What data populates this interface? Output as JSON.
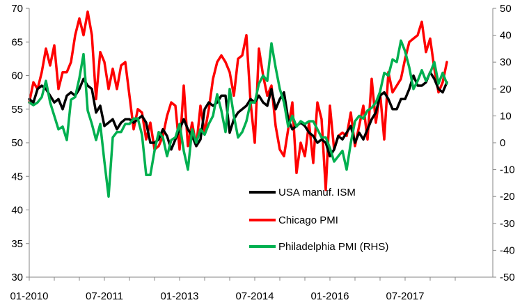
{
  "chart_data": {
    "type": "line",
    "x_tick_labels": [
      "01-2010",
      "07-2011",
      "01-2013",
      "07-2014",
      "01-2016",
      "07-2017"
    ],
    "x_start": "2010-01",
    "y_left": {
      "ylim": [
        30,
        70
      ],
      "ticks": [
        "30",
        "35",
        "40",
        "45",
        "50",
        "55",
        "60",
        "65",
        "70"
      ]
    },
    "y_right": {
      "ylim": [
        -50,
        50
      ],
      "ticks": [
        "-50",
        "-40",
        "-30",
        "-20",
        "-10",
        "0",
        "10",
        "20",
        "30",
        "40",
        "50"
      ]
    },
    "grid": false,
    "legend_position": "center-right",
    "series": [
      {
        "name": "USA manuf. ISM",
        "axis": "left",
        "color": "#000000",
        "values": [
          56.5,
          56.0,
          58.0,
          58.5,
          58.0,
          57.0,
          56.0,
          56.5,
          55.0,
          57.0,
          57.5,
          57.0,
          58.0,
          59.5,
          58.5,
          58.0,
          54.5,
          55.5,
          52.5,
          53.0,
          53.5,
          52.0,
          53.0,
          53.5,
          53.5,
          53.0,
          53.5,
          54.0,
          53.0,
          50.0,
          50.0,
          50.5,
          52.0,
          51.0,
          49.0,
          50.5,
          52.0,
          53.5,
          52.0,
          51.0,
          49.5,
          50.5,
          55.0,
          56.0,
          55.5,
          56.0,
          57.0,
          57.0,
          51.5,
          53.5,
          54.5,
          55.0,
          55.5,
          56.5,
          56.0,
          57.0,
          56.0,
          55.5,
          58.0,
          55.0,
          56.5,
          57.5,
          53.5,
          52.0,
          52.5,
          53.0,
          52.5,
          51.5,
          51.0,
          50.0,
          50.5,
          50.0,
          48.0,
          49.0,
          51.0,
          50.5,
          51.5,
          52.5,
          50.0,
          51.5,
          50.5,
          52.0,
          53.5,
          54.5,
          57.0,
          57.5,
          56.5,
          55.0,
          55.0,
          56.5,
          56.5,
          58.0,
          60.0,
          58.5,
          58.5,
          59.0,
          60.5,
          59.5,
          58.0,
          57.5,
          59.0
        ]
      },
      {
        "name": "Chicago PMI",
        "axis": "left",
        "color": "#ff0000",
        "values": [
          56.0,
          59.0,
          58.0,
          60.5,
          64.0,
          61.5,
          64.5,
          58.0,
          60.5,
          60.5,
          62.0,
          66.0,
          68.5,
          66.0,
          69.5,
          66.0,
          56.5,
          63.5,
          62.0,
          58.0,
          61.0,
          58.0,
          61.5,
          62.0,
          57.0,
          52.0,
          55.0,
          54.5,
          50.5,
          53.0,
          49.0,
          49.5,
          51.0,
          54.0,
          56.0,
          55.5,
          49.0,
          58.5,
          49.5,
          53.0,
          49.5,
          55.5,
          51.5,
          55.0,
          59.5,
          62.0,
          63.0,
          62.0,
          60.5,
          57.0,
          62.5,
          63.0,
          66.0,
          56.0,
          50.0,
          64.0,
          60.0,
          57.0,
          58.5,
          52.5,
          49.0,
          48.0,
          52.0,
          56.0,
          45.5,
          50.0,
          48.0,
          53.0,
          47.0,
          56.0,
          53.5,
          43.0,
          55.5,
          49.0,
          51.0,
          51.5,
          51.0,
          54.5,
          49.5,
          52.5,
          55.5,
          50.5,
          59.5,
          53.0,
          57.5,
          50.5,
          60.5,
          57.5,
          58.5,
          59.5,
          62.5,
          65.0,
          65.5,
          66.0,
          68.0,
          63.5,
          65.5,
          61.0,
          57.5,
          59.0,
          62.0
        ]
      },
      {
        "name": "Philadelphia PMI (RHS)",
        "axis": "right",
        "color": "#00b050",
        "values": [
          15,
          14,
          15,
          17,
          23,
          15,
          10,
          5,
          6,
          1,
          16,
          17,
          24,
          33,
          12,
          7,
          1,
          7,
          -7,
          -20,
          2,
          4,
          4,
          7,
          7,
          9,
          9,
          3,
          -12,
          -12,
          -3,
          4,
          2,
          -5,
          1,
          2,
          7,
          -3,
          -10,
          5,
          0,
          5,
          3,
          7,
          10,
          18,
          12,
          4,
          20,
          10,
          2,
          4,
          8,
          15,
          15,
          22,
          25,
          23,
          37,
          28,
          20,
          15,
          6,
          10,
          6,
          8,
          7,
          8,
          8,
          5,
          2,
          2,
          -2,
          -7,
          -5,
          -3,
          -10,
          0,
          8,
          10,
          9,
          12,
          13,
          15,
          19,
          26,
          25,
          31,
          30,
          38,
          34,
          28,
          20,
          23,
          27,
          23,
          26,
          30,
          22,
          26,
          22
        ]
      }
    ]
  }
}
